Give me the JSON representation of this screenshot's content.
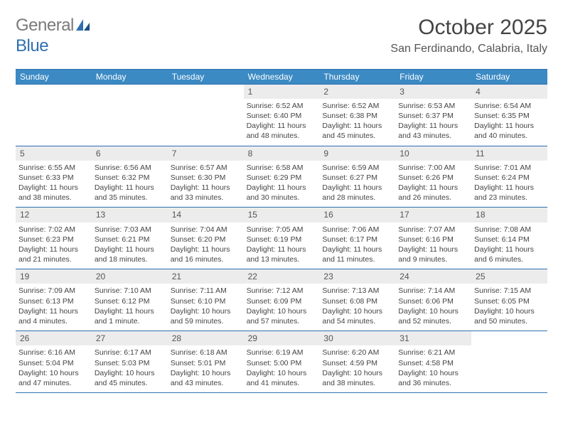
{
  "logo": {
    "general": "General",
    "blue": "Blue"
  },
  "title": "October 2025",
  "location": "San Ferdinando, Calabria, Italy",
  "colors": {
    "header_bar": "#3b8ac4",
    "rule": "#2f6fb0",
    "daynum_bg": "#ececec",
    "logo_gray": "#7a7a7a",
    "logo_blue": "#2f6fb0"
  },
  "daysOfWeek": [
    "Sunday",
    "Monday",
    "Tuesday",
    "Wednesday",
    "Thursday",
    "Friday",
    "Saturday"
  ],
  "weeks": [
    [
      {
        "n": "",
        "empty": true
      },
      {
        "n": "",
        "empty": true
      },
      {
        "n": "",
        "empty": true
      },
      {
        "n": "1",
        "sunrise": "6:52 AM",
        "sunset": "6:40 PM",
        "daylight": "11 hours and 48 minutes."
      },
      {
        "n": "2",
        "sunrise": "6:52 AM",
        "sunset": "6:38 PM",
        "daylight": "11 hours and 45 minutes."
      },
      {
        "n": "3",
        "sunrise": "6:53 AM",
        "sunset": "6:37 PM",
        "daylight": "11 hours and 43 minutes."
      },
      {
        "n": "4",
        "sunrise": "6:54 AM",
        "sunset": "6:35 PM",
        "daylight": "11 hours and 40 minutes."
      }
    ],
    [
      {
        "n": "5",
        "sunrise": "6:55 AM",
        "sunset": "6:33 PM",
        "daylight": "11 hours and 38 minutes."
      },
      {
        "n": "6",
        "sunrise": "6:56 AM",
        "sunset": "6:32 PM",
        "daylight": "11 hours and 35 minutes."
      },
      {
        "n": "7",
        "sunrise": "6:57 AM",
        "sunset": "6:30 PM",
        "daylight": "11 hours and 33 minutes."
      },
      {
        "n": "8",
        "sunrise": "6:58 AM",
        "sunset": "6:29 PM",
        "daylight": "11 hours and 30 minutes."
      },
      {
        "n": "9",
        "sunrise": "6:59 AM",
        "sunset": "6:27 PM",
        "daylight": "11 hours and 28 minutes."
      },
      {
        "n": "10",
        "sunrise": "7:00 AM",
        "sunset": "6:26 PM",
        "daylight": "11 hours and 26 minutes."
      },
      {
        "n": "11",
        "sunrise": "7:01 AM",
        "sunset": "6:24 PM",
        "daylight": "11 hours and 23 minutes."
      }
    ],
    [
      {
        "n": "12",
        "sunrise": "7:02 AM",
        "sunset": "6:23 PM",
        "daylight": "11 hours and 21 minutes."
      },
      {
        "n": "13",
        "sunrise": "7:03 AM",
        "sunset": "6:21 PM",
        "daylight": "11 hours and 18 minutes."
      },
      {
        "n": "14",
        "sunrise": "7:04 AM",
        "sunset": "6:20 PM",
        "daylight": "11 hours and 16 minutes."
      },
      {
        "n": "15",
        "sunrise": "7:05 AM",
        "sunset": "6:19 PM",
        "daylight": "11 hours and 13 minutes."
      },
      {
        "n": "16",
        "sunrise": "7:06 AM",
        "sunset": "6:17 PM",
        "daylight": "11 hours and 11 minutes."
      },
      {
        "n": "17",
        "sunrise": "7:07 AM",
        "sunset": "6:16 PM",
        "daylight": "11 hours and 9 minutes."
      },
      {
        "n": "18",
        "sunrise": "7:08 AM",
        "sunset": "6:14 PM",
        "daylight": "11 hours and 6 minutes."
      }
    ],
    [
      {
        "n": "19",
        "sunrise": "7:09 AM",
        "sunset": "6:13 PM",
        "daylight": "11 hours and 4 minutes."
      },
      {
        "n": "20",
        "sunrise": "7:10 AM",
        "sunset": "6:12 PM",
        "daylight": "11 hours and 1 minute."
      },
      {
        "n": "21",
        "sunrise": "7:11 AM",
        "sunset": "6:10 PM",
        "daylight": "10 hours and 59 minutes."
      },
      {
        "n": "22",
        "sunrise": "7:12 AM",
        "sunset": "6:09 PM",
        "daylight": "10 hours and 57 minutes."
      },
      {
        "n": "23",
        "sunrise": "7:13 AM",
        "sunset": "6:08 PM",
        "daylight": "10 hours and 54 minutes."
      },
      {
        "n": "24",
        "sunrise": "7:14 AM",
        "sunset": "6:06 PM",
        "daylight": "10 hours and 52 minutes."
      },
      {
        "n": "25",
        "sunrise": "7:15 AM",
        "sunset": "6:05 PM",
        "daylight": "10 hours and 50 minutes."
      }
    ],
    [
      {
        "n": "26",
        "sunrise": "6:16 AM",
        "sunset": "5:04 PM",
        "daylight": "10 hours and 47 minutes."
      },
      {
        "n": "27",
        "sunrise": "6:17 AM",
        "sunset": "5:03 PM",
        "daylight": "10 hours and 45 minutes."
      },
      {
        "n": "28",
        "sunrise": "6:18 AM",
        "sunset": "5:01 PM",
        "daylight": "10 hours and 43 minutes."
      },
      {
        "n": "29",
        "sunrise": "6:19 AM",
        "sunset": "5:00 PM",
        "daylight": "10 hours and 41 minutes."
      },
      {
        "n": "30",
        "sunrise": "6:20 AM",
        "sunset": "4:59 PM",
        "daylight": "10 hours and 38 minutes."
      },
      {
        "n": "31",
        "sunrise": "6:21 AM",
        "sunset": "4:58 PM",
        "daylight": "10 hours and 36 minutes."
      },
      {
        "n": "",
        "empty": true
      }
    ]
  ],
  "labels": {
    "sunrise": "Sunrise:",
    "sunset": "Sunset:",
    "daylight": "Daylight:"
  }
}
